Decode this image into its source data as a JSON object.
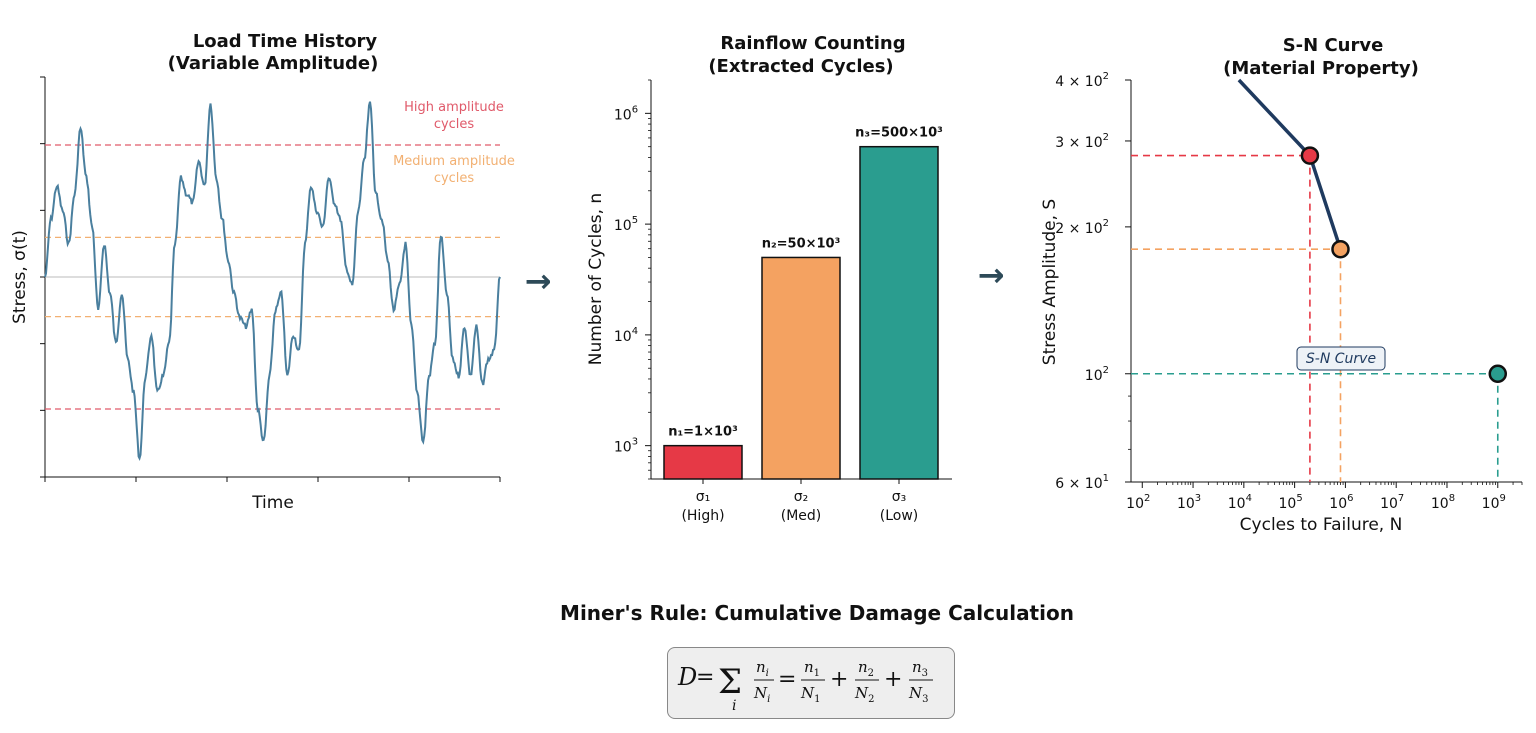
{
  "panels": {
    "load": {
      "title_line1": "Load Time History",
      "title_line2": "(Variable Amplitude)",
      "xlabel": "Time",
      "ylabel": "Stress, σ(t)",
      "annotation_high_line1": "High amplitude",
      "annotation_high_line2": "cycles",
      "annotation_med_line1": "Medium amplitude",
      "annotation_med_line2": "cycles",
      "colors": {
        "signal": "#4a7f9e",
        "high": "#e05a6a",
        "medium": "#f2b072",
        "zero": "#bbbbbb"
      }
    },
    "rainflow": {
      "title_line1": "Rainflow Counting",
      "title_line2": "(Extracted Cycles)",
      "ylabel": "Number of Cycles, n"
    },
    "sn": {
      "title_line1": "S-N Curve",
      "title_line2": "(Material Property)",
      "xlabel": "Cycles to Failure, N",
      "ylabel": "Stress Amplitude, S",
      "curve_label": "S-N Curve"
    }
  },
  "arrows": [
    "→",
    "→"
  ],
  "miner": {
    "title": "Miner's Rule: Cumulative Damage Calculation",
    "formula_text": "D = Σ_i n_i/N_i = n_1/N_1 + n_2/N_2 + n_3/N_3"
  },
  "chart_data": [
    {
      "type": "line",
      "title": "Load Time History\n(Variable Amplitude)",
      "xlabel": "Time",
      "ylabel": "Stress, σ(t)",
      "series": [
        {
          "values": [
            0,
            0.35,
            0.55,
            0.4,
            0.2,
            0.5,
            0.9,
            0.6,
            0.3,
            -0.2,
            0.2,
            -0.1,
            -0.4,
            -0.1,
            -0.5,
            -0.7,
            -1.1,
            -0.6,
            -0.35,
            -0.7,
            -0.6,
            -0.4,
            0.2,
            0.6,
            0.5,
            0.45,
            0.7,
            0.55,
            1.05,
            0.6,
            0.35,
            0.1,
            -0.1,
            -0.25,
            -0.3,
            -0.2,
            -0.8,
            -1.0,
            -0.6,
            -0.2,
            -0.1,
            -0.6,
            -0.35,
            -0.45,
            0.2,
            0.55,
            0.4,
            0.3,
            0.6,
            0.45,
            0.35,
            0.05,
            -0.05,
            0.4,
            0.7,
            1.05,
            0.5,
            0.35,
            0.1,
            -0.2,
            -0.05,
            0.2,
            -0.3,
            -0.7,
            -1.0,
            -0.6,
            -0.4,
            0.25,
            -0.1,
            -0.5,
            -0.6,
            -0.3,
            -0.6,
            -0.3,
            -0.65,
            -0.5,
            -0.45,
            0.0
          ]
        }
      ],
      "hlines": [
        {
          "name": "High amplitude cycles",
          "y": [
            0.8,
            -0.8
          ]
        },
        {
          "name": "Medium amplitude cycles",
          "y": [
            0.24,
            -0.24
          ]
        }
      ]
    },
    {
      "type": "bar",
      "title": "Rainflow Counting\n(Extracted Cycles)",
      "ylabel": "Number of Cycles, n",
      "yscale": "log",
      "ylim": [
        500,
        2000000
      ],
      "categories": [
        "σ₁\n(High)",
        "σ₂\n(Med)",
        "σ₃\n(Low)"
      ],
      "values": [
        1000,
        50000,
        500000
      ],
      "data_labels": [
        "n₁=1×10³",
        "n₂=50×10³",
        "n₃=500×10³"
      ],
      "colors": [
        "#e63946",
        "#f4a261",
        "#2a9d8f"
      ]
    },
    {
      "type": "scatter",
      "title": "S-N Curve\n(Material Property)",
      "xlabel": "Cycles to Failure, N",
      "ylabel": "Stress Amplitude, S",
      "xscale": "log",
      "yscale": "log",
      "xlim": [
        60,
        3000000000
      ],
      "ylim": [
        60,
        400
      ],
      "curve": {
        "x": [
          8000,
          200000,
          800000
        ],
        "y": [
          400,
          280,
          180
        ],
        "color": "#1f3a5f"
      },
      "points": [
        {
          "x": 200000,
          "y": 280,
          "color": "#e63946"
        },
        {
          "x": 800000,
          "y": 180,
          "color": "#f4a261"
        },
        {
          "x": 1000000000,
          "y": 100,
          "color": "#2a9d8f"
        }
      ],
      "annotation": "S-N Curve"
    }
  ]
}
